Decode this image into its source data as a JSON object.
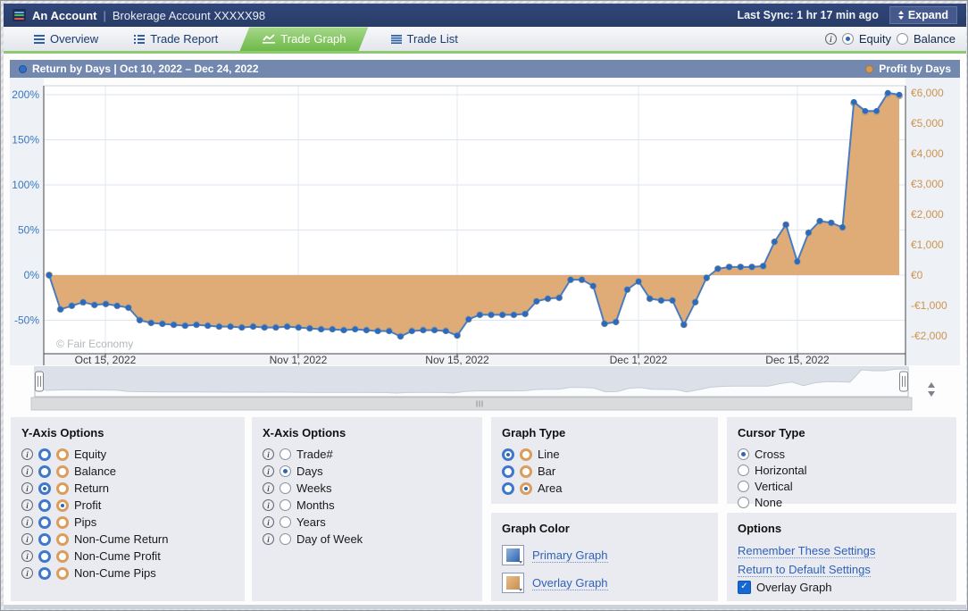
{
  "title_bar": {
    "account_name": "An Account",
    "separator": "|",
    "account_desc": "Brokerage Account XXXXX98",
    "last_sync": "Last Sync: 1 hr 17 min ago",
    "expand_label": "Expand"
  },
  "tabs": [
    {
      "id": "overview",
      "label": "Overview",
      "active": false
    },
    {
      "id": "trade-report",
      "label": "Trade Report",
      "active": false
    },
    {
      "id": "trade-graph",
      "label": "Trade Graph",
      "active": true
    },
    {
      "id": "trade-list",
      "label": "Trade List",
      "active": false
    }
  ],
  "series_toggle": {
    "equity_label": "Equity",
    "balance_label": "Balance",
    "selected": "Equity"
  },
  "chart_header": {
    "left_label": "Return by Days | Oct 10, 2022 – Dec 24, 2022",
    "right_label": "Profit by Days"
  },
  "chart_data": {
    "type": "line",
    "x_unit": "days",
    "x_start": "Oct 10, 2022",
    "x_end": "Dec 24, 2022",
    "grid": true,
    "legend_position": "header",
    "watermark": "© Fair Economy",
    "x_ticks": [
      {
        "day": 5,
        "label": "Oct 15, 2022"
      },
      {
        "day": 22,
        "label": "Nov 1, 2022"
      },
      {
        "day": 36,
        "label": "Nov 15, 2022"
      },
      {
        "day": 52,
        "label": "Dec 1, 2022"
      },
      {
        "day": 66,
        "label": "Dec 15, 2022"
      }
    ],
    "left_axis": {
      "name": "Return",
      "ticks": [
        200,
        150,
        100,
        50,
        0,
        -50
      ],
      "labels": [
        "200%",
        "150%",
        "100%",
        "50%",
        "0%",
        "-50%"
      ]
    },
    "right_axis": {
      "name": "Profit",
      "ticks": [
        6000,
        5000,
        4000,
        3000,
        2000,
        1000,
        0,
        -1000,
        -2000
      ],
      "labels": [
        "€6,000",
        "€5,000",
        "€4,000",
        "€3,000",
        "€2,000",
        "€1,000",
        "€0",
        "-€1,000",
        "-€2,000"
      ]
    },
    "series": [
      {
        "name": "Return by Days",
        "type": "line",
        "axis": "left",
        "unit": "%",
        "color": "#4a7cc0",
        "marker_color": "#2a6abf",
        "values": [
          0,
          -38,
          -34,
          -30,
          -33,
          -32,
          -34,
          -36,
          -50,
          -53,
          -54,
          -55,
          -56,
          -55,
          -56,
          -57,
          -57,
          -58,
          -57,
          -58,
          -58,
          -57,
          -58,
          -59,
          -60,
          -60,
          -61,
          -60,
          -61,
          -62,
          -62,
          -68,
          -62,
          -61,
          -61,
          -62,
          -67,
          -49,
          -44,
          -44,
          -44,
          -44,
          -43,
          -29,
          -26,
          -25,
          -5,
          -5,
          -12,
          -54,
          -52,
          -16,
          -7,
          -26,
          -28,
          -28,
          -55,
          -30,
          -3,
          7,
          9,
          9,
          9,
          10,
          37,
          56,
          15,
          47,
          60,
          58,
          53,
          192,
          182,
          182,
          202,
          200
        ]
      },
      {
        "name": "Profit by Days",
        "type": "area",
        "axis": "right",
        "unit": "EUR",
        "color": "#dfab76",
        "marker_color": "#b2a28d",
        "values": [
          0,
          -1120,
          -1000,
          -890,
          -975,
          -945,
          -1005,
          -1065,
          -1475,
          -1565,
          -1595,
          -1625,
          -1655,
          -1625,
          -1655,
          -1685,
          -1685,
          -1715,
          -1685,
          -1715,
          -1715,
          -1685,
          -1715,
          -1745,
          -1770,
          -1770,
          -1800,
          -1770,
          -1800,
          -1830,
          -1830,
          -2005,
          -1830,
          -1800,
          -1800,
          -1830,
          -1980,
          -1450,
          -1300,
          -1300,
          -1300,
          -1300,
          -1270,
          -855,
          -770,
          -740,
          -150,
          -150,
          -355,
          -1595,
          -1535,
          -470,
          -205,
          -770,
          -825,
          -825,
          -1625,
          -885,
          -90,
          205,
          265,
          265,
          265,
          295,
          1090,
          1655,
          445,
          1390,
          1770,
          1715,
          1565,
          5670,
          5375,
          5375,
          5965,
          5905
        ]
      }
    ]
  },
  "panels": {
    "y_axis": {
      "title": "Y-Axis Options",
      "rows": [
        {
          "label": "Equity"
        },
        {
          "label": "Balance"
        },
        {
          "label": "Return",
          "primary": true
        },
        {
          "label": "Profit",
          "overlay": true
        },
        {
          "label": "Pips"
        },
        {
          "label": "Non-Cume Return"
        },
        {
          "label": "Non-Cume Profit"
        },
        {
          "label": "Non-Cume Pips"
        }
      ]
    },
    "x_axis": {
      "title": "X-Axis Options",
      "rows": [
        {
          "label": "Trade#"
        },
        {
          "label": "Days",
          "selected": true
        },
        {
          "label": "Weeks"
        },
        {
          "label": "Months"
        },
        {
          "label": "Years"
        },
        {
          "label": "Day of Week"
        }
      ]
    },
    "graph_type": {
      "title": "Graph Type",
      "rows": [
        {
          "label": "Line",
          "primary": true
        },
        {
          "label": "Bar"
        },
        {
          "label": "Area",
          "overlay": true
        }
      ]
    },
    "graph_color": {
      "title": "Graph Color",
      "items": [
        {
          "label": "Primary Graph",
          "color": "#2d62ad",
          "color_light": "#8fb3e2"
        },
        {
          "label": "Overlay Graph",
          "color": "#c78f4e",
          "color_light": "#e8bc8a"
        }
      ]
    },
    "cursor_type": {
      "title": "Cursor Type",
      "rows": [
        {
          "label": "Cross",
          "selected": true
        },
        {
          "label": "Horizontal"
        },
        {
          "label": "Vertical"
        },
        {
          "label": "None"
        }
      ]
    },
    "options": {
      "title": "Options",
      "links": [
        "Remember These Settings",
        "Return to Default Settings"
      ],
      "checkbox": {
        "label": "Overlay Graph",
        "checked": true
      }
    }
  },
  "colors": {
    "topbar": "#2c4168",
    "active_tab_green": "#76bd4f",
    "green_strip": "#8cc96f",
    "chart_header": "#7288ae",
    "left_axis_text": "#3a78c2",
    "right_axis_text": "#cd9450",
    "line": "#4a7cc0",
    "area": "#dfab76"
  }
}
